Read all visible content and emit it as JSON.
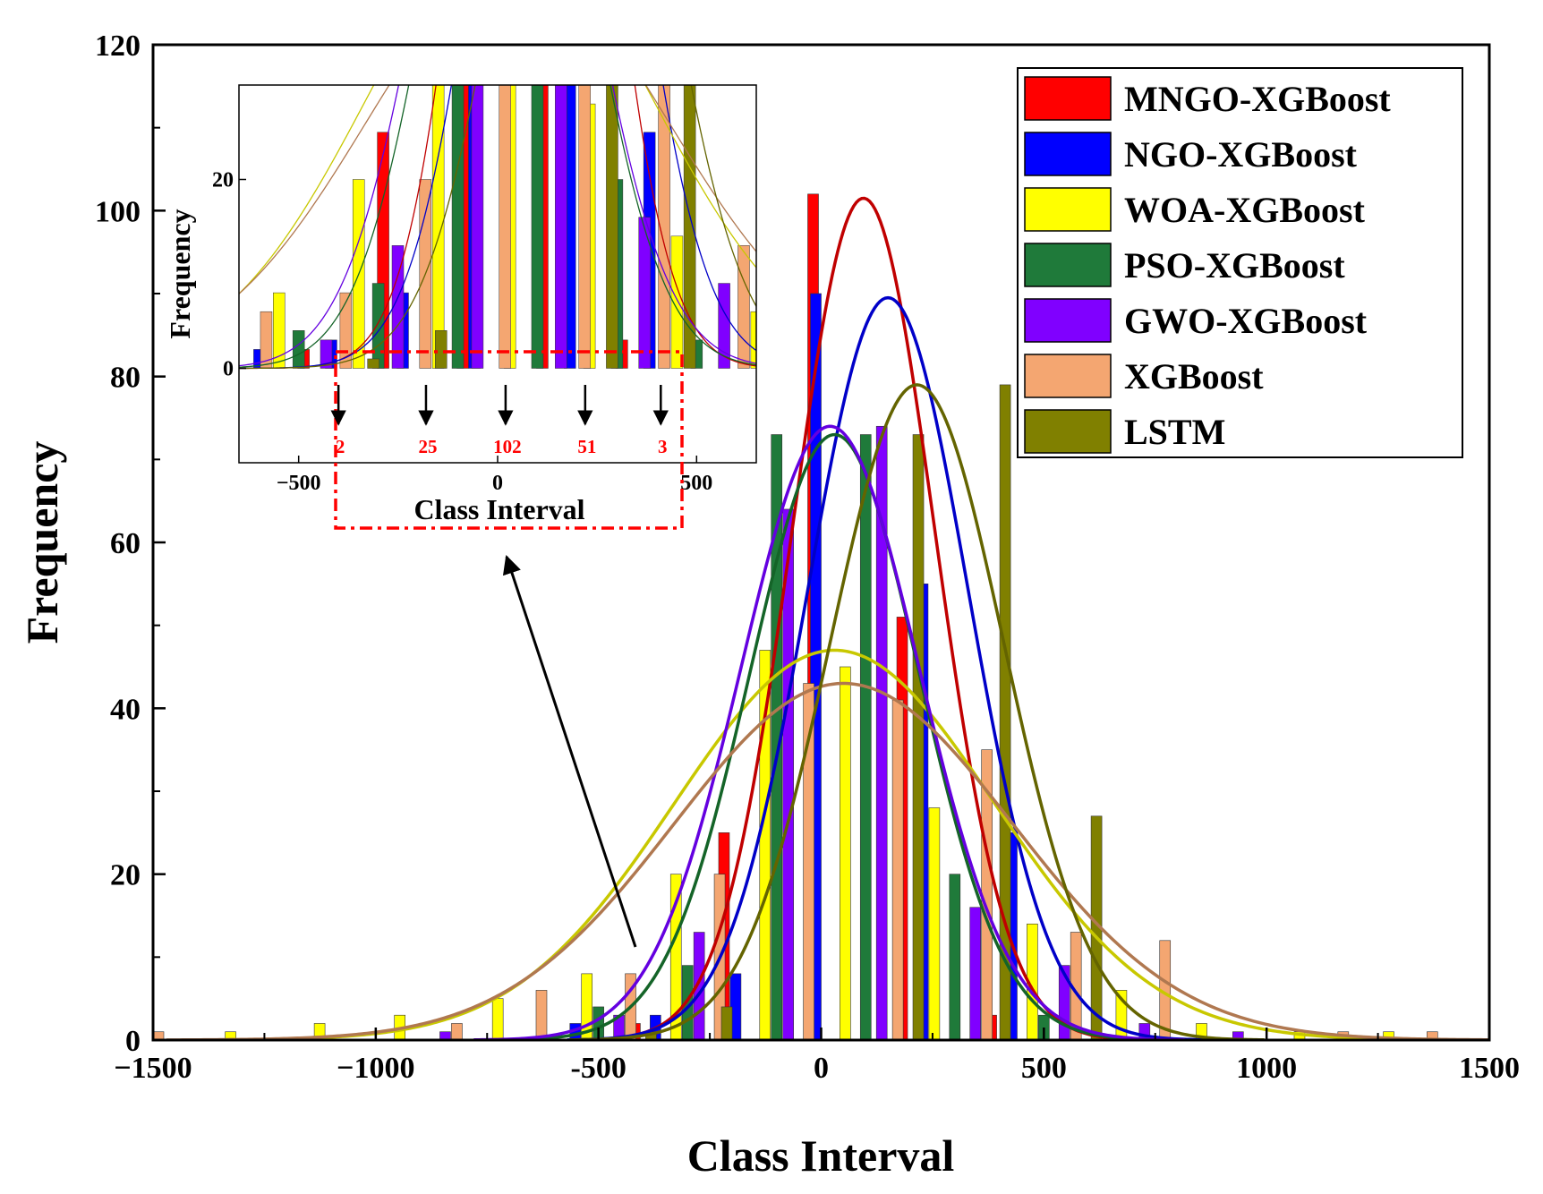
{
  "chart_data": {
    "type": "bar",
    "title": "",
    "xlabel": "Class Interval",
    "ylabel": "Frequency",
    "xlim": [
      -1500,
      1500
    ],
    "ylim": [
      0,
      120
    ],
    "x_ticks": [
      -1500,
      -1000,
      -500,
      0,
      500,
      1000,
      1500
    ],
    "y_ticks": [
      0,
      20,
      40,
      60,
      80,
      100,
      120
    ],
    "x_tick_labels": [
      "−1500",
      "−1000",
      "-500",
      "0",
      "500",
      "1000",
      "1500"
    ],
    "y_tick_labels": [
      "0",
      "20",
      "40",
      "60",
      "80",
      "100",
      "120"
    ],
    "legend_position": "top-right",
    "series": [
      {
        "name": "MNGO-XGBoost",
        "color": "#ff0000",
        "curve_color": "#c00000",
        "bin_width": 200,
        "bin_centers": [
          -400,
          -200,
          0,
          200,
          400
        ],
        "values": [
          2,
          25,
          102,
          51,
          3
        ],
        "fit": {
          "mean": 95,
          "sd": 160,
          "peak": 101.5
        }
      },
      {
        "name": "NGO-XGBoost",
        "color": "#0000ff",
        "curve_color": "#0000c8",
        "bin_width": 200,
        "bin_centers": [
          -540,
          -360,
          -180,
          0,
          240,
          440
        ],
        "values": [
          2,
          3,
          8,
          90,
          55,
          25
        ],
        "fit": {
          "mean": 150,
          "sd": 180,
          "peak": 89.5
        }
      },
      {
        "name": "WOA-XGBoost",
        "color": "#ffff00",
        "curve_color": "#c8c800",
        "bin_width": 180,
        "bin_centers": [
          -1320,
          -1120,
          -940,
          -720,
          -520,
          -320,
          -120,
          60,
          260,
          480,
          680,
          860,
          1080,
          1280
        ],
        "values": [
          1,
          2,
          3,
          5,
          8,
          20,
          47,
          45,
          28,
          14,
          6,
          2,
          1,
          1
        ],
        "fit": {
          "mean": 30,
          "sd": 360,
          "peak": 47
        }
      },
      {
        "name": "PSO-XGBoost",
        "color": "#1f7a3a",
        "curve_color": "#146428",
        "bin_width": 200,
        "bin_centers": [
          -500,
          -300,
          -100,
          100,
          300,
          500
        ],
        "values": [
          4,
          9,
          73,
          73,
          20,
          3
        ],
        "fit": {
          "mean": 30,
          "sd": 190,
          "peak": 73
        }
      },
      {
        "name": "GWO-XGBoost",
        "color": "#8000ff",
        "curve_color": "#6400e0",
        "bin_width": 200,
        "bin_centers": [
          -850,
          -460,
          -280,
          -80,
          130,
          340,
          540,
          720,
          930
        ],
        "values": [
          1,
          3,
          13,
          64,
          74,
          16,
          9,
          2,
          1
        ],
        "fit": {
          "mean": 20,
          "sd": 200,
          "peak": 74
        }
      },
      {
        "name": "XGBoost",
        "color": "#f4a671",
        "curve_color": "#b07850",
        "bin_width": 180,
        "bin_centers": [
          -1500,
          -830,
          -640,
          -440,
          -240,
          -40,
          160,
          360,
          560,
          760,
          1160,
          1360
        ],
        "values": [
          1,
          2,
          6,
          8,
          20,
          43,
          41,
          35,
          13,
          12,
          1,
          1
        ],
        "fit": {
          "mean": 50,
          "sd": 380,
          "peak": 43
        }
      },
      {
        "name": "LSTM",
        "color": "#808000",
        "curve_color": "#646400",
        "bin_width": 200,
        "bin_centers": [
          -400,
          -230,
          200,
          395,
          600
        ],
        "values": [
          1,
          4,
          73,
          79,
          27
        ],
        "fit": {
          "mean": 215,
          "sd": 195,
          "peak": 79
        }
      }
    ],
    "inset": {
      "xlabel": "Class Interval",
      "ylabel": "Frequency",
      "xlim": [
        -650,
        650
      ],
      "ylim": [
        -10,
        30
      ],
      "x_ticks": [
        -500,
        0,
        500
      ],
      "y_ticks": [
        0,
        20
      ],
      "x_tick_labels": [
        "−500",
        "0",
        "500"
      ],
      "y_tick_labels": [
        "0",
        "20"
      ],
      "annotations": [
        {
          "text": "2",
          "x": -400
        },
        {
          "text": "25",
          "x": -180
        },
        {
          "text": "102",
          "x": 20
        },
        {
          "text": "51",
          "x": 220
        },
        {
          "text": "3",
          "x": 410
        }
      ]
    }
  }
}
